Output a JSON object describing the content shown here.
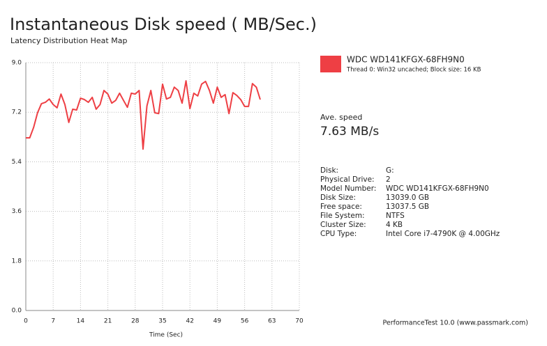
{
  "chart_data": {
    "type": "line",
    "title": "Instantaneous Disk speed ( MB/Sec.)",
    "subtitle": "Latency Distribution Heat Map",
    "x_label": "Time (Sec)",
    "x": [
      0,
      1,
      2,
      3,
      4,
      5,
      6,
      7,
      8,
      9,
      10,
      11,
      12,
      13,
      14,
      15,
      16,
      17,
      18,
      19,
      20,
      21,
      22,
      23,
      24,
      25,
      26,
      27,
      28,
      29,
      30,
      31,
      32,
      33,
      34,
      35,
      36,
      37,
      38,
      39,
      40,
      41,
      42,
      43,
      44,
      45,
      46,
      47,
      48,
      49,
      50,
      51,
      52,
      53,
      54,
      55,
      56,
      57,
      58,
      59,
      60
    ],
    "series": [
      {
        "name": "WDC WD141KFGX-68FH9N0",
        "color": "#ee3f44",
        "values": [
          6.27,
          6.27,
          6.65,
          7.18,
          7.51,
          7.56,
          7.68,
          7.48,
          7.36,
          7.86,
          7.48,
          6.83,
          7.31,
          7.28,
          7.71,
          7.66,
          7.56,
          7.74,
          7.31,
          7.48,
          7.99,
          7.86,
          7.53,
          7.63,
          7.89,
          7.63,
          7.38,
          7.89,
          7.86,
          7.99,
          5.86,
          7.43,
          7.99,
          7.18,
          7.15,
          8.22,
          7.68,
          7.74,
          8.11,
          7.99,
          7.53,
          8.34,
          7.33,
          7.89,
          7.79,
          8.22,
          8.32,
          7.99,
          7.53,
          8.11,
          7.74,
          7.84,
          7.15,
          7.91,
          7.81,
          7.66,
          7.41,
          7.41,
          8.24,
          8.11,
          7.66
        ]
      }
    ],
    "xlim": [
      0,
      70
    ],
    "xticks": [
      0,
      7,
      14,
      21,
      28,
      35,
      42,
      49,
      56,
      63,
      70
    ],
    "ylim": [
      0,
      9
    ],
    "yticks": [
      {
        "value": 0,
        "label": "0.0"
      },
      1.8,
      3.6,
      5.4,
      7.2,
      {
        "value": 9,
        "label": "9.0"
      }
    ],
    "grid": true
  },
  "legend_detail": "Thread 0: Win32 uncached; Block size: 16 KB",
  "average": {
    "label": "Ave. speed",
    "value": "7.63 MB/s"
  },
  "details": [
    [
      "Disk:",
      "G:"
    ],
    [
      "Physical Drive:",
      "2"
    ],
    [
      "Model Number:",
      "WDC WD141KFGX-68FH9N0"
    ],
    [
      "Disk Size:",
      "13039.0 GB"
    ],
    [
      "Free space:",
      "13037.5 GB"
    ],
    [
      "File System:",
      "NTFS"
    ],
    [
      "Cluster Size:",
      "4 KB"
    ],
    [
      "CPU Type:",
      "Intel Core i7-4790K @ 4.00GHz"
    ]
  ],
  "footer": "PerformanceTest 10.0 (www.passmark.com)"
}
